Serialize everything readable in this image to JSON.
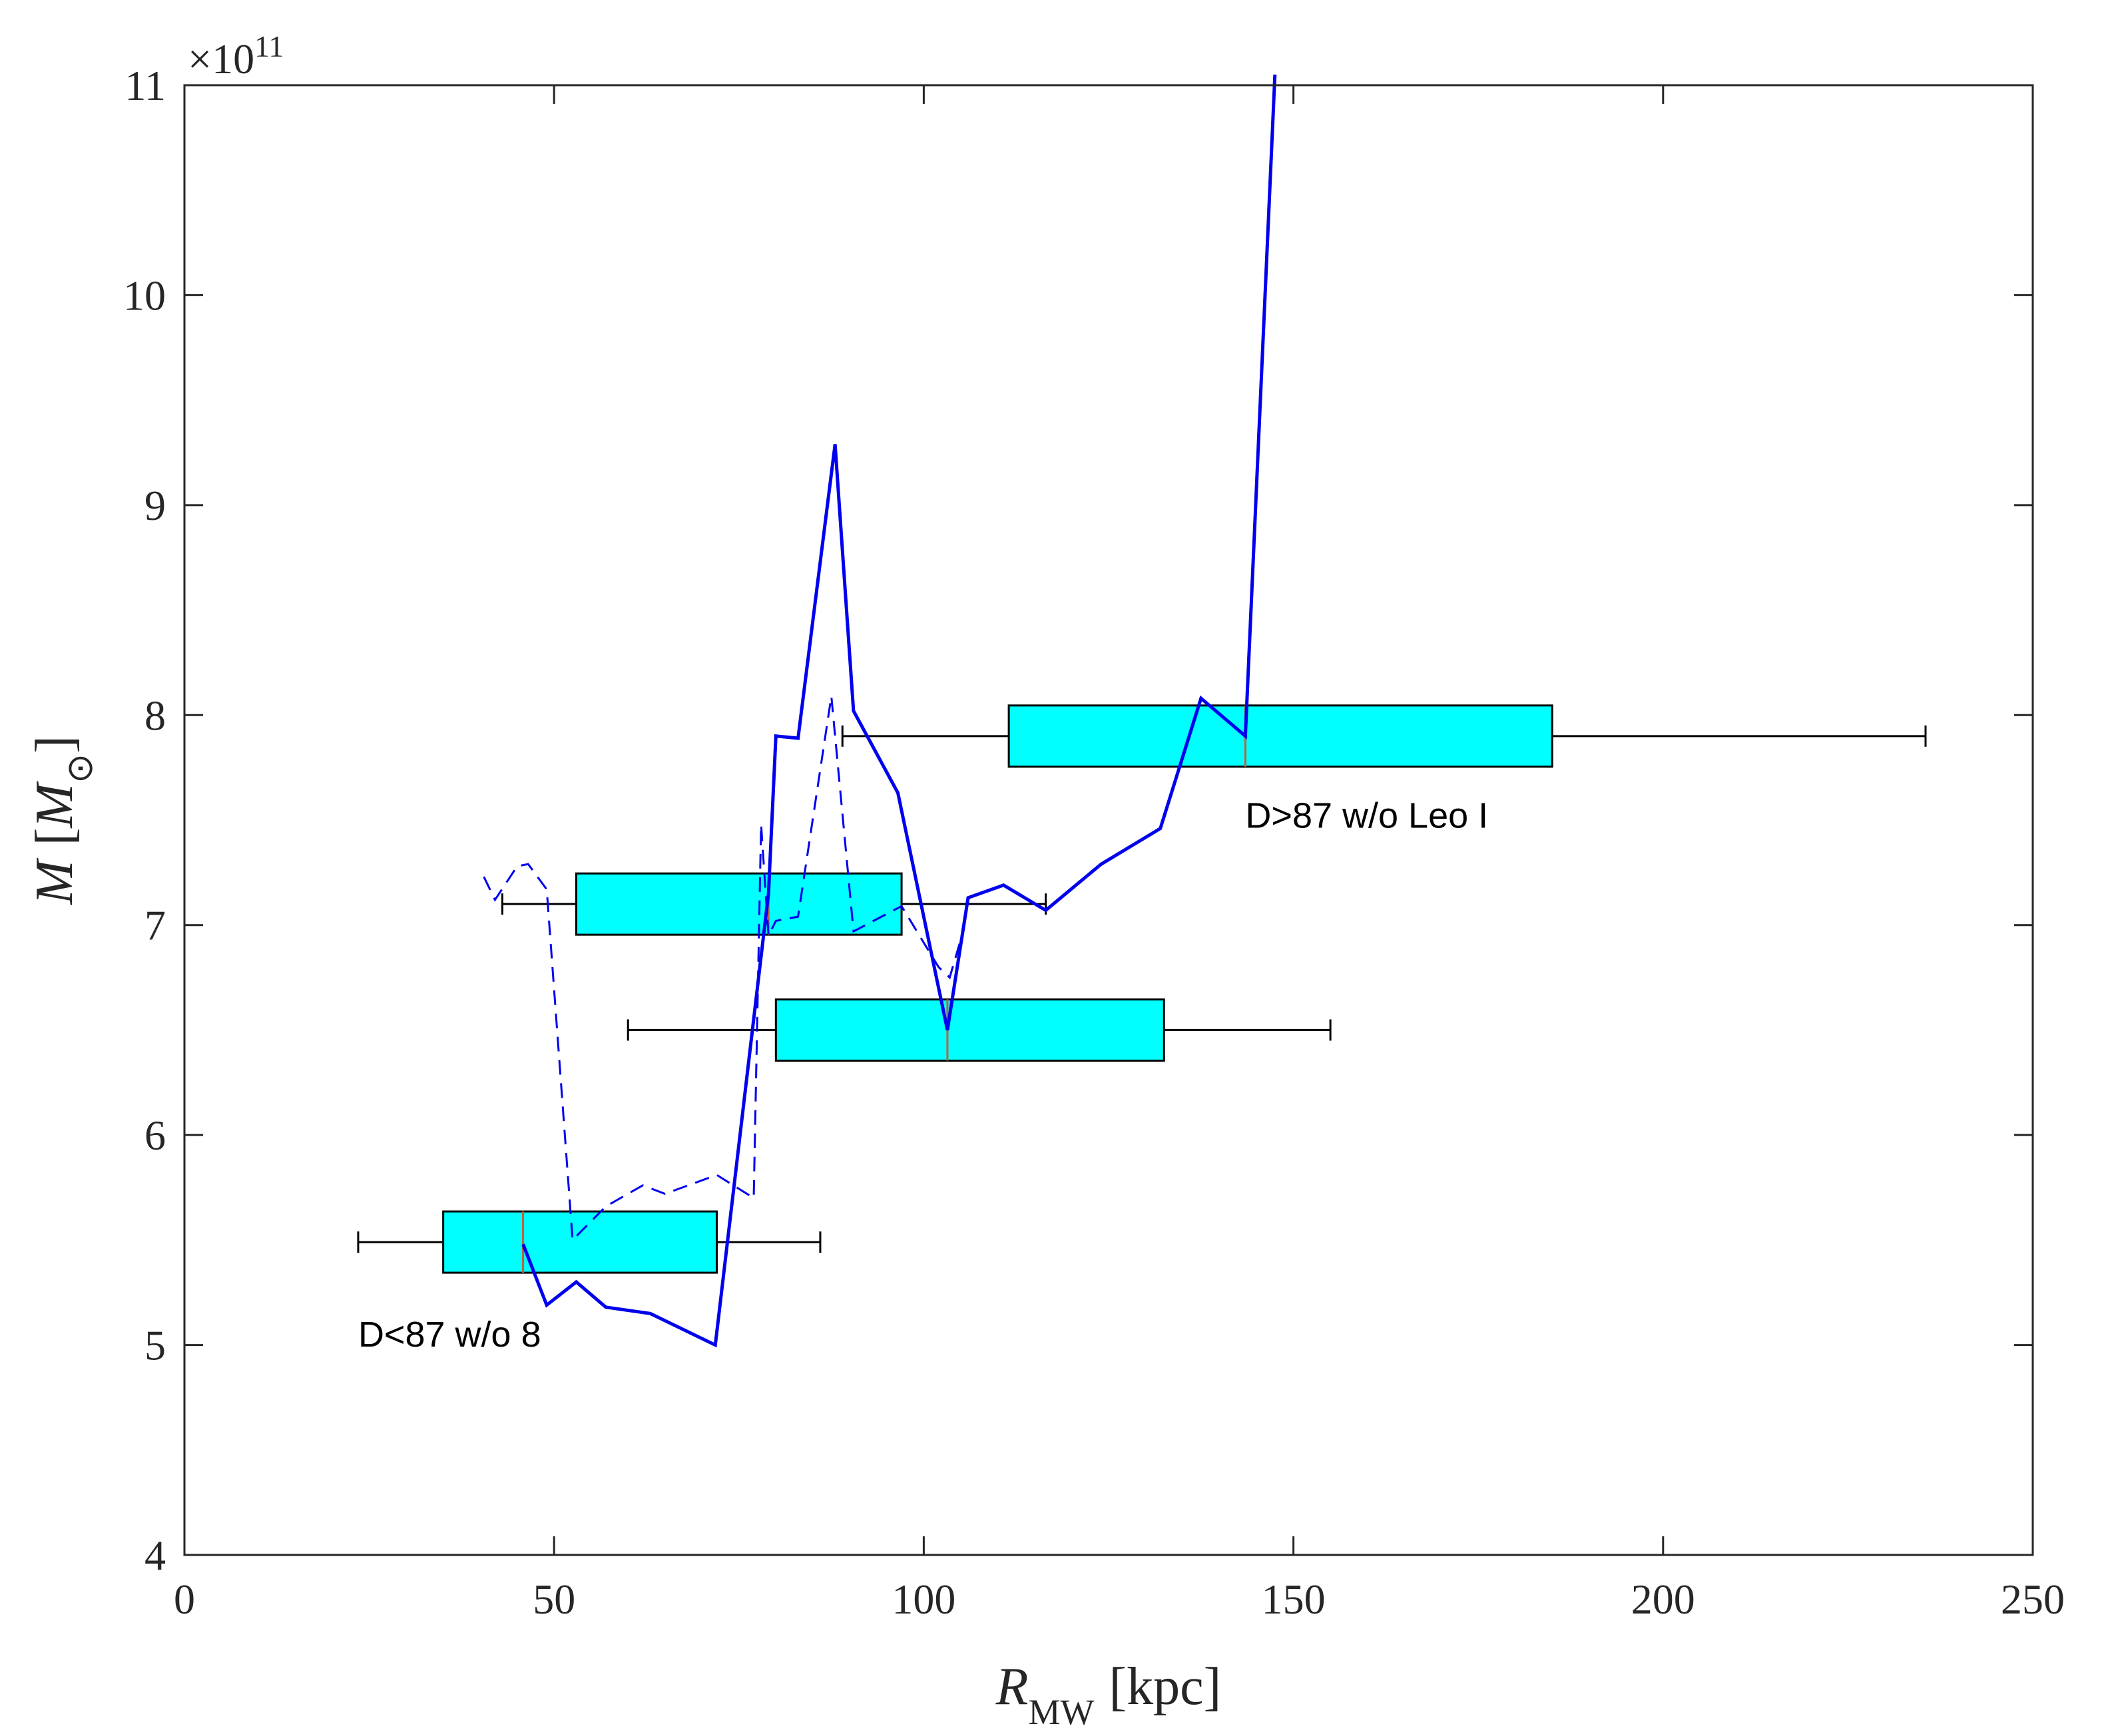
{
  "chart_data": {
    "type": "line",
    "xlabel": "R_MW [kpc]",
    "xlabel_parts": {
      "var": "R",
      "sub": "MW",
      "unit": "[kpc]"
    },
    "ylabel": "M [M_⊙]",
    "ylabel_parts": {
      "var": "M",
      "open": "[",
      "unitvar": "M",
      "sub": "⊙",
      "close": "]"
    },
    "y_multiplier": "×10^11",
    "y_multiplier_parts": {
      "base": "×10",
      "exp": "11"
    },
    "xlim": [
      0,
      250
    ],
    "ylim": [
      4,
      11
    ],
    "xticks": [
      0,
      50,
      100,
      150,
      200,
      250
    ],
    "yticks": [
      4,
      5,
      6,
      7,
      8,
      9,
      10,
      11
    ],
    "xtick_labels": [
      "0",
      "50",
      "100",
      "150",
      "200",
      "250"
    ],
    "ytick_labels": [
      "4",
      "5",
      "6",
      "7",
      "8",
      "9",
      "10",
      "11"
    ],
    "grid": false,
    "series": [
      {
        "style": "solid",
        "color": "#0000ee",
        "x": [
          45.8,
          49,
          53,
          57,
          63,
          71.8,
          79,
          80,
          83,
          88,
          90.5,
          96.5,
          103.2,
          106,
          110.8,
          116.5,
          124,
          132,
          137.5,
          143.5,
          147.5
        ],
        "y": [
          5.48,
          5.19,
          5.3,
          5.18,
          5.15,
          5.0,
          7.15,
          7.9,
          7.89,
          9.29,
          8.02,
          7.63,
          6.5,
          7.13,
          7.19,
          7.07,
          7.29,
          7.46,
          8.08,
          7.9,
          11.05
        ]
      },
      {
        "style": "dashed",
        "color": "#0000ee",
        "x": [
          40.5,
          42,
          45,
          46.5,
          49,
          52.5,
          57,
          62,
          65,
          72,
          77,
          78,
          79,
          80,
          83,
          87.5,
          90.5,
          97,
          102,
          103.5,
          105
        ],
        "y": [
          7.23,
          7.12,
          7.28,
          7.29,
          7.17,
          5.5,
          5.66,
          5.76,
          5.72,
          5.81,
          5.7,
          7.48,
          6.95,
          7.02,
          7.04,
          8.09,
          6.97,
          7.09,
          6.8,
          6.75,
          6.93
        ]
      }
    ],
    "boxes": [
      {
        "whisker_low": 23.5,
        "q1": 35,
        "median": 45.8,
        "q3": 72,
        "whisker_high": 86,
        "y": 5.49
      },
      {
        "whisker_low": 43,
        "q1": 53,
        "median": 79,
        "q3": 97,
        "whisker_high": 116.5,
        "y": 7.1
      },
      {
        "whisker_low": 60,
        "q1": 80,
        "median": 103.2,
        "q3": 132.5,
        "whisker_high": 155,
        "y": 6.5
      },
      {
        "whisker_low": 89,
        "q1": 111.5,
        "median": 143.5,
        "q3": 185,
        "whisker_high": 235.5,
        "y": 7.9
      }
    ],
    "box_fill": "#00ffff",
    "median_color": "#c0603a",
    "annotations": [
      {
        "text": "D<87 w/o 8",
        "x": 23.5,
        "y": 5.05
      },
      {
        "text": "D>87 w/o Leo I",
        "x": 143.5,
        "y": 7.52
      }
    ]
  }
}
